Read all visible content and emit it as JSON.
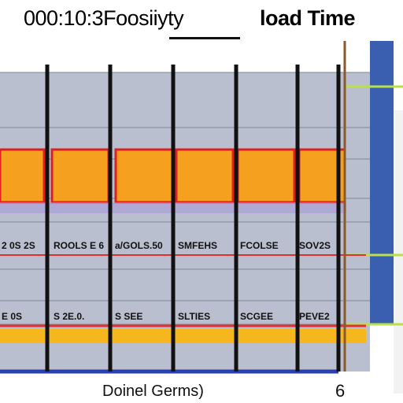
{
  "chart_data": {
    "type": "bar",
    "title_left": "000:10:3Foosiiyty",
    "title_right": "load Time",
    "xlabel": "Doinel Germs)",
    "corner_label": "6",
    "categories": [
      "",
      "",
      "",
      "",
      ""
    ],
    "series": [
      {
        "values": [
          1,
          1,
          1,
          1,
          1
        ]
      }
    ],
    "row_labels_1": [
      "2 0S 2S",
      "ROOLS E 6",
      "a/GOLS.50",
      "SMFEHS",
      "FCOLSE",
      "SOV2S"
    ],
    "row_labels_2": [
      "E 0S",
      "S 2E.0.",
      "S SEE",
      "SLTIES",
      "SCGEE",
      "PEVE2"
    ],
    "grid": true,
    "colors": {
      "bar_fill": "#f5a01f",
      "bar_border": "#e02020",
      "plot_bg": "#b9bfce",
      "gridline_v": "#111111",
      "band_red": "#e03030",
      "band_orange": "#f5b61e",
      "axis_blue": "#2a3fb0",
      "right_strip": "#3b5fb0",
      "tick_green": "#b7e04a"
    }
  }
}
